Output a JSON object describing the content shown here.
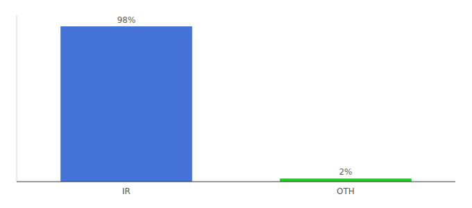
{
  "chart_data": {
    "type": "bar",
    "categories": [
      "IR",
      "OTH"
    ],
    "values": [
      98,
      2
    ],
    "value_labels": [
      "98%",
      "2%"
    ],
    "colors": [
      "#4472d6",
      "#22cc22"
    ],
    "ylim": [
      0,
      105
    ],
    "yticks": [],
    "grid": false,
    "data_labels": true,
    "tick_labels": "x"
  }
}
